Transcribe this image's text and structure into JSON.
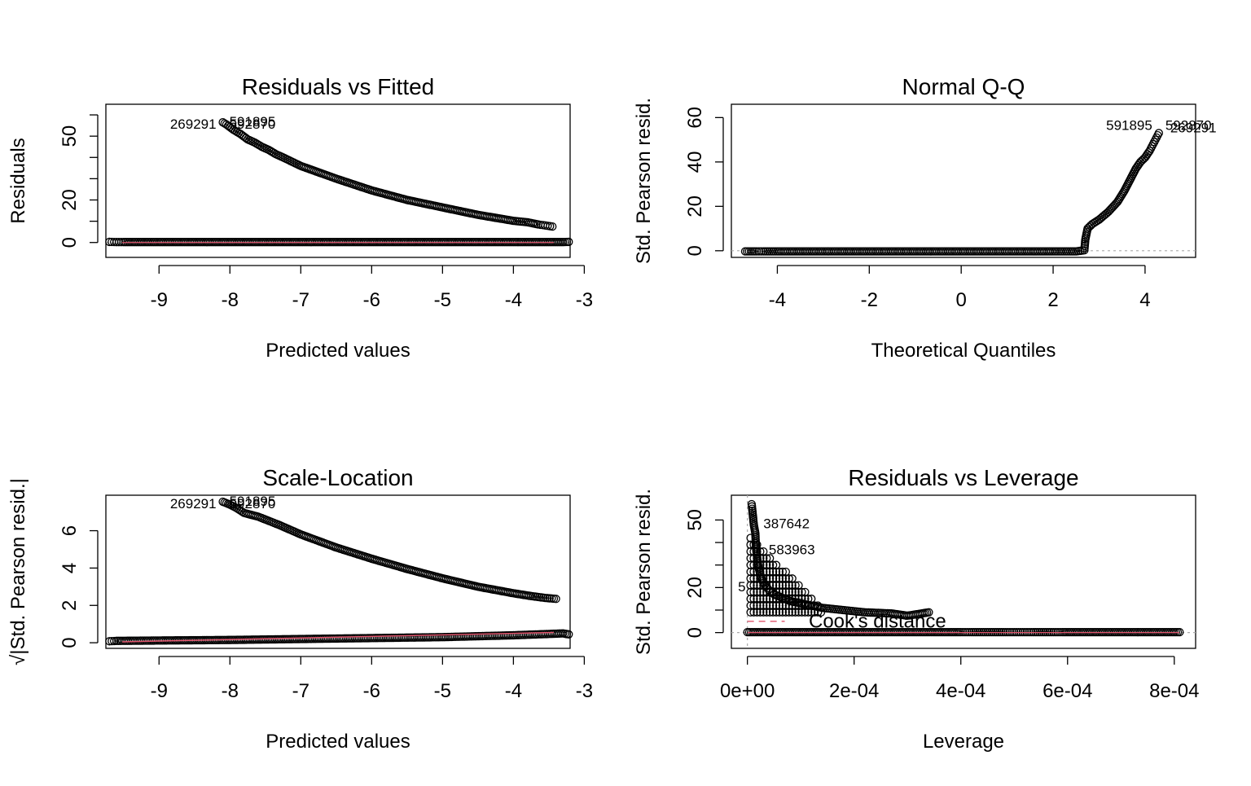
{
  "chart_data": [
    {
      "type": "scatter",
      "title": "Residuals vs Fitted",
      "xlabel": "Predicted values",
      "ylabel": "Residuals",
      "xlim": [
        -9.75,
        -3.2
      ],
      "ylim": [
        -7,
        65
      ],
      "xticks": [
        -9,
        -8,
        -7,
        -6,
        -5,
        -4,
        -3
      ],
      "yticks": [
        0,
        20,
        50
      ],
      "yminor": [
        10,
        30,
        40,
        60
      ],
      "ref_line": 0,
      "series": [
        {
          "points": [
            [
              -8.1,
              56.5
            ],
            [
              -8.05,
              55.5
            ],
            [
              -7.95,
              53
            ],
            [
              -7.85,
              51
            ],
            [
              -7.75,
              48.5
            ],
            [
              -7.65,
              47
            ],
            [
              -7.55,
              45
            ],
            [
              -7.45,
              43.5
            ],
            [
              -7.35,
              41.5
            ],
            [
              -7.25,
              40
            ],
            [
              -7.0,
              36
            ],
            [
              -6.5,
              30
            ],
            [
              -6.0,
              24.5
            ],
            [
              -5.5,
              20
            ],
            [
              -5.0,
              16.5
            ],
            [
              -4.5,
              13
            ],
            [
              -4.0,
              10.2
            ],
            [
              -3.8,
              9.5
            ],
            [
              -3.65,
              8.5
            ],
            [
              -3.55,
              8
            ],
            [
              -3.45,
              7.5
            ]
          ]
        },
        {
          "points": [
            [
              -9.7,
              0.3
            ],
            [
              -9.6,
              0.2
            ],
            [
              -9.5,
              0.2
            ],
            [
              -9.0,
              0.2
            ],
            [
              -8.0,
              0.2
            ],
            [
              -7.0,
              0.2
            ],
            [
              -6.0,
              0.2
            ],
            [
              -5.0,
              0.2
            ],
            [
              -4.0,
              0.2
            ],
            [
              -3.3,
              0.2
            ],
            [
              -3.22,
              0.3
            ]
          ]
        }
      ],
      "point_labels": [
        "269291",
        "591895",
        "592870"
      ]
    },
    {
      "type": "scatter",
      "title": "Normal Q-Q",
      "xlabel": "Theoretical Quantiles",
      "ylabel": "Std. Pearson resid.",
      "xlim": [
        -5.0,
        5.1
      ],
      "ylim": [
        -3,
        66
      ],
      "xticks": [
        -4,
        -2,
        0,
        2,
        4
      ],
      "yticks": [
        0,
        20,
        40,
        60
      ],
      "ref_line": 0,
      "series": [
        {
          "points": [
            [
              -4.7,
              -0.3
            ],
            [
              -4.45,
              -0.3
            ],
            [
              -4.3,
              -0.3
            ],
            [
              -4.0,
              -0.3
            ],
            [
              -3.0,
              -0.3
            ],
            [
              -2.0,
              -0.3
            ],
            [
              -1.0,
              -0.3
            ],
            [
              0,
              -0.3
            ],
            [
              1.0,
              -0.3
            ],
            [
              2.0,
              -0.3
            ],
            [
              2.5,
              -0.3
            ],
            [
              2.68,
              0.2
            ],
            [
              2.7,
              5
            ],
            [
              2.75,
              10
            ],
            [
              2.85,
              12
            ],
            [
              3.0,
              14
            ],
            [
              3.2,
              17.5
            ],
            [
              3.4,
              22
            ],
            [
              3.55,
              27
            ],
            [
              3.7,
              33
            ],
            [
              3.8,
              37
            ],
            [
              3.9,
              40
            ],
            [
              4.0,
              42
            ],
            [
              4.1,
              45
            ],
            [
              4.15,
              47
            ],
            [
              4.2,
              49
            ],
            [
              4.25,
              51
            ],
            [
              4.3,
              53
            ]
          ]
        }
      ],
      "point_labels": [
        "591895",
        "592870",
        "269291"
      ]
    },
    {
      "type": "scatter",
      "title": "Scale-Location",
      "xlabel": "Predicted values",
      "ylabel": "√|Std. Pearson resid.|",
      "xlim": [
        -9.75,
        -3.2
      ],
      "ylim": [
        -0.3,
        7.9
      ],
      "xticks": [
        -9,
        -8,
        -7,
        -6,
        -5,
        -4,
        -3
      ],
      "yticks": [
        0,
        2,
        4,
        6
      ],
      "series": [
        {
          "points": [
            [
              -8.1,
              7.55
            ],
            [
              -8.0,
              7.4
            ],
            [
              -7.9,
              7.2
            ],
            [
              -7.8,
              6.95
            ],
            [
              -7.7,
              6.85
            ],
            [
              -7.6,
              6.75
            ],
            [
              -7.5,
              6.6
            ],
            [
              -7.3,
              6.3
            ],
            [
              -7.0,
              5.8
            ],
            [
              -6.5,
              5.1
            ],
            [
              -6.0,
              4.5
            ],
            [
              -5.5,
              3.95
            ],
            [
              -5.0,
              3.45
            ],
            [
              -4.5,
              3.0
            ],
            [
              -4.0,
              2.65
            ],
            [
              -3.75,
              2.5
            ],
            [
              -3.55,
              2.4
            ],
            [
              -3.4,
              2.35
            ]
          ]
        },
        {
          "points": [
            [
              -9.7,
              0.08
            ],
            [
              -9.6,
              0.1
            ],
            [
              -9.0,
              0.12
            ],
            [
              -8.0,
              0.15
            ],
            [
              -7.0,
              0.2
            ],
            [
              -6.0,
              0.25
            ],
            [
              -5.0,
              0.3
            ],
            [
              -4.0,
              0.4
            ],
            [
              -3.3,
              0.5
            ],
            [
              -3.22,
              0.45
            ]
          ]
        }
      ],
      "trend_line": [
        [
          -9.75,
          0.05
        ],
        [
          -3.2,
          0.55
        ]
      ],
      "point_labels": [
        "269291",
        "591895",
        "592870"
      ]
    },
    {
      "type": "scatter",
      "title": "Residuals vs Leverage",
      "xlabel": "Leverage",
      "ylabel": "Std. Pearson resid.",
      "xlim": [
        -3e-05,
        0.00084
      ],
      "ylim": [
        -7,
        61
      ],
      "xticks": [
        0,
        0.0002,
        0.0004,
        0.0006,
        0.0008
      ],
      "xtick_labels": [
        "0e+00",
        "2e-04",
        "4e-04",
        "6e-04",
        "8e-04"
      ],
      "yticks": [
        0,
        20,
        50
      ],
      "yminor": [
        10,
        30,
        40
      ],
      "ref_line": 0,
      "series": [
        {
          "points": [
            [
              8e-06,
              57
            ],
            [
              9e-06,
              55
            ],
            [
              1.2e-05,
              48
            ],
            [
              1.5e-05,
              44
            ],
            [
              1.6e-05,
              38
            ],
            [
              1.8e-05,
              34
            ],
            [
              2e-05,
              30
            ],
            [
              2.5e-05,
              25
            ],
            [
              3e-05,
              22
            ],
            [
              4e-05,
              19
            ],
            [
              5e-05,
              17
            ],
            [
              6e-05,
              16
            ],
            [
              8e-05,
              14
            ],
            [
              0.0001,
              13
            ],
            [
              0.00012,
              12
            ],
            [
              0.00014,
              11
            ],
            [
              0.00018,
              10
            ],
            [
              0.00022,
              9
            ],
            [
              0.00027,
              8.5
            ],
            [
              0.0003,
              7.5
            ],
            [
              0.00034,
              9
            ]
          ]
        },
        {
          "points": [
            [
              0.0,
              0.2
            ],
            [
              0.0001,
              0.2
            ],
            [
              0.0002,
              0.2
            ],
            [
              0.0003,
              0.2
            ],
            [
              0.0004,
              0.2
            ],
            [
              0.00042,
              0.2
            ],
            [
              0.00045,
              0.2
            ],
            [
              0.00048,
              0.2
            ],
            [
              0.0005,
              0.2
            ],
            [
              0.00052,
              0.2
            ],
            [
              0.00054,
              0.2
            ],
            [
              0.00057,
              0.2
            ],
            [
              0.00059,
              0.2
            ],
            [
              0.00066,
              0.2
            ],
            [
              0.00073,
              0.2
            ],
            [
              0.00081,
              0.2
            ]
          ]
        }
      ],
      "point_labels": [
        "387642",
        "583963",
        "5"
      ],
      "annotation": "Cook's distance"
    }
  ]
}
